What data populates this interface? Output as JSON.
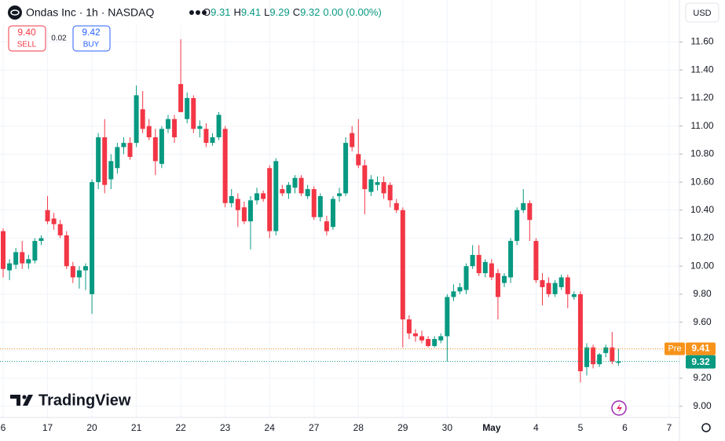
{
  "chart_data": {
    "type": "candlestick",
    "title": "Ondas Inc · 1h · NASDAQ",
    "ohlc_labels": [
      "O",
      "H",
      "L",
      "C"
    ],
    "ohlc_values": [
      9.31,
      9.41,
      9.29,
      9.32
    ],
    "change": "0.00 (0.00%)",
    "sell": {
      "value": 9.4,
      "label": "9.40",
      "text": "SELL"
    },
    "spread": 0.02,
    "buy": {
      "value": 9.42,
      "label": "9.42",
      "text": "BUY"
    },
    "currency": "USD",
    "watermark": "TradingView",
    "up_color": "#089981",
    "down_color": "#f23645",
    "premarket": {
      "label": "Pre",
      "value": 9.41,
      "color": "#f7931a"
    },
    "last_price": 9.32,
    "grid": true,
    "ylim": [
      8.92,
      11.9
    ],
    "yticks": [
      {
        "value": 9.0,
        "label": "9.00"
      },
      {
        "value": 9.2,
        "label": "9.20"
      },
      {
        "value": 9.4,
        "label": "9.40"
      },
      {
        "value": 9.6,
        "label": "9.60"
      },
      {
        "value": 9.8,
        "label": "9.80"
      },
      {
        "value": 10.0,
        "label": "10.00"
      },
      {
        "value": 10.2,
        "label": "10.20"
      },
      {
        "value": 10.4,
        "label": "10.40"
      },
      {
        "value": 10.6,
        "label": "10.60"
      },
      {
        "value": 10.8,
        "label": "10.80"
      },
      {
        "value": 11.0,
        "label": "11.00"
      },
      {
        "value": 11.2,
        "label": "11.20"
      },
      {
        "value": 11.4,
        "label": "11.40"
      },
      {
        "value": 11.6,
        "label": "11.60"
      }
    ],
    "categories": [
      "6",
      null,
      null,
      null,
      null,
      null,
      null,
      "17",
      null,
      null,
      null,
      null,
      null,
      null,
      "20",
      null,
      null,
      null,
      null,
      null,
      null,
      "21",
      null,
      null,
      null,
      null,
      null,
      null,
      "22",
      null,
      null,
      null,
      null,
      null,
      null,
      "23",
      null,
      null,
      null,
      null,
      null,
      null,
      "24",
      null,
      null,
      null,
      null,
      null,
      null,
      "27",
      null,
      null,
      null,
      null,
      null,
      null,
      "28",
      null,
      null,
      null,
      null,
      null,
      null,
      "29",
      null,
      null,
      null,
      null,
      null,
      null,
      "30",
      null,
      null,
      null,
      null,
      null,
      null,
      "May",
      null,
      null,
      null,
      null,
      null,
      null,
      "4",
      null,
      null,
      null,
      null,
      null,
      null,
      "5",
      null,
      null,
      null,
      null,
      null,
      null,
      "6",
      null,
      null,
      null,
      null,
      null,
      null,
      "7"
    ],
    "open": [
      10.25,
      9.97,
      10.01,
      10.1,
      10.02,
      10.04,
      10.18,
      10.4,
      10.34,
      10.3,
      10.22,
      10.0,
      9.92,
      9.97,
      9.8,
      10.6,
      10.92,
      10.62,
      10.7,
      10.85,
      10.88,
      10.88,
      11.12,
      11.0,
      10.92,
      10.73,
      10.98,
      11.05,
      11.3,
      11.05,
      11.2,
      10.98,
      10.98,
      10.88,
      10.92,
      10.98,
      10.45,
      10.48,
      10.42,
      10.32,
      10.47,
      10.52,
      10.7,
      10.25,
      10.55,
      10.52,
      10.56,
      10.63,
      10.5,
      10.55,
      10.35,
      10.32,
      10.28,
      10.5,
      10.52,
      10.95,
      10.8,
      10.72,
      10.53,
      10.58,
      10.6,
      10.58,
      10.45,
      10.4,
      9.62,
      9.52,
      9.5,
      9.48,
      9.43,
      9.47,
      9.5,
      9.78,
      9.82,
      9.83,
      10.0,
      10.08,
      9.95,
      10.02,
      9.95,
      9.88,
      9.92,
      10.18,
      10.4,
      10.45,
      10.18,
      9.9,
      9.88,
      9.8,
      9.85,
      9.92,
      9.78,
      9.8,
      9.28,
      9.42,
      9.3,
      9.38,
      9.42,
      9.31,
      null,
      null,
      null,
      null,
      null,
      null,
      null,
      null
    ],
    "high": [
      10.27,
      10.05,
      10.13,
      10.18,
      10.08,
      10.2,
      10.22,
      10.5,
      10.38,
      10.33,
      10.25,
      10.03,
      10.0,
      10.02,
      10.62,
      10.95,
      11.05,
      10.8,
      10.88,
      10.92,
      10.92,
      11.29,
      11.25,
      11.05,
      10.98,
      11.0,
      11.08,
      11.08,
      11.62,
      11.24,
      11.22,
      11.04,
      11.02,
      10.95,
      11.1,
      11.0,
      10.55,
      10.52,
      10.46,
      10.5,
      10.56,
      10.54,
      10.72,
      10.77,
      10.58,
      10.6,
      10.65,
      10.65,
      10.58,
      10.57,
      10.52,
      10.36,
      10.5,
      10.56,
      10.92,
      11.0,
      11.05,
      10.76,
      10.65,
      10.64,
      10.64,
      10.6,
      10.48,
      10.42,
      9.65,
      9.55,
      9.54,
      9.5,
      9.5,
      9.52,
      9.8,
      9.87,
      9.88,
      10.02,
      10.15,
      10.15,
      10.05,
      10.05,
      9.98,
      9.95,
      10.2,
      10.42,
      10.55,
      10.47,
      10.2,
      9.95,
      9.92,
      9.9,
      9.94,
      9.94,
      9.82,
      9.82,
      9.45,
      9.44,
      9.38,
      9.44,
      9.53,
      9.41,
      null,
      null,
      null,
      null,
      null,
      null,
      null,
      null
    ],
    "low": [
      9.92,
      9.9,
      9.98,
      9.98,
      9.98,
      10.02,
      10.15,
      10.3,
      10.26,
      10.2,
      9.98,
      9.88,
      9.84,
      9.83,
      9.66,
      10.55,
      10.52,
      10.55,
      10.66,
      10.8,
      10.76,
      10.85,
      10.95,
      10.9,
      10.65,
      10.7,
      10.95,
      10.88,
      11.1,
      11.02,
      10.95,
      10.92,
      10.85,
      10.86,
      10.9,
      10.42,
      10.42,
      10.28,
      10.3,
      10.12,
      10.44,
      10.46,
      10.2,
      10.22,
      10.5,
      10.48,
      10.52,
      10.5,
      10.48,
      10.33,
      10.32,
      10.22,
      10.26,
      10.46,
      10.5,
      10.82,
      10.7,
      10.37,
      10.5,
      10.54,
      10.48,
      10.42,
      10.38,
      9.42,
      9.48,
      9.46,
      9.45,
      9.42,
      9.42,
      9.45,
      9.32,
      9.75,
      9.8,
      9.8,
      9.98,
      9.93,
      9.92,
      9.9,
      9.62,
      9.85,
      9.88,
      10.15,
      10.38,
      10.18,
      9.88,
      9.72,
      9.78,
      9.78,
      9.83,
      9.7,
      9.76,
      9.17,
      9.22,
      9.27,
      9.28,
      9.35,
      9.3,
      9.29,
      null,
      null,
      null,
      null,
      null,
      null,
      null,
      null
    ],
    "close": [
      9.98,
      10.02,
      10.1,
      10.02,
      10.05,
      10.18,
      10.2,
      10.32,
      10.3,
      10.22,
      10.0,
      9.92,
      9.97,
      10.0,
      10.6,
      10.92,
      10.58,
      10.75,
      10.85,
      10.88,
      10.78,
      11.22,
      10.98,
      10.92,
      10.75,
      10.98,
      11.05,
      10.92,
      11.1,
      11.2,
      10.98,
      11.0,
      10.88,
      10.92,
      11.08,
      10.45,
      10.5,
      10.4,
      10.32,
      10.47,
      10.52,
      10.48,
      10.25,
      10.75,
      10.52,
      10.58,
      10.63,
      10.52,
      10.55,
      10.35,
      10.5,
      10.25,
      10.48,
      10.52,
      10.88,
      10.85,
      10.72,
      10.55,
      10.62,
      10.6,
      10.52,
      10.47,
      10.4,
      9.62,
      9.52,
      9.5,
      9.47,
      9.43,
      9.48,
      9.5,
      9.78,
      9.82,
      9.85,
      10.0,
      10.08,
      9.95,
      10.03,
      9.92,
      9.78,
      9.93,
      10.18,
      10.4,
      10.45,
      10.33,
      9.9,
      9.85,
      9.8,
      9.88,
      9.92,
      9.8,
      9.8,
      9.25,
      9.42,
      9.3,
      9.37,
      9.42,
      9.32,
      9.32,
      null,
      null,
      null,
      null,
      null,
      null,
      null,
      null
    ]
  }
}
